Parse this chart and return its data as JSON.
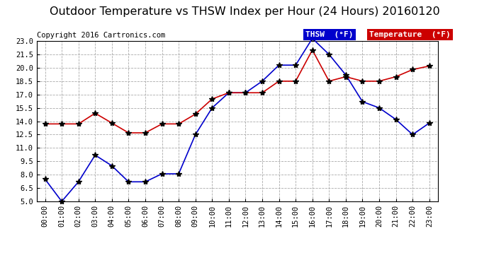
{
  "title": "Outdoor Temperature vs THSW Index per Hour (24 Hours) 20160120",
  "copyright": "Copyright 2016 Cartronics.com",
  "legend_thsw": "THSW  (°F)",
  "legend_temp": "Temperature  (°F)",
  "hours": [
    "00:00",
    "01:00",
    "02:00",
    "03:00",
    "04:00",
    "05:00",
    "06:00",
    "07:00",
    "08:00",
    "09:00",
    "10:00",
    "11:00",
    "12:00",
    "13:00",
    "14:00",
    "15:00",
    "16:00",
    "17:00",
    "18:00",
    "19:00",
    "20:00",
    "21:00",
    "22:00",
    "23:00"
  ],
  "thsw": [
    7.5,
    5.0,
    7.2,
    10.2,
    9.0,
    7.2,
    7.2,
    8.1,
    8.1,
    12.5,
    15.5,
    17.2,
    17.2,
    18.5,
    20.3,
    20.3,
    23.3,
    21.5,
    19.2,
    16.2,
    15.5,
    14.2,
    12.5,
    13.8
  ],
  "temperature": [
    13.7,
    13.7,
    13.7,
    14.9,
    13.8,
    12.7,
    12.7,
    13.7,
    13.7,
    14.8,
    16.5,
    17.2,
    17.2,
    17.2,
    18.5,
    18.5,
    22.0,
    18.5,
    19.0,
    18.5,
    18.5,
    19.0,
    19.8,
    20.2
  ],
  "ylim": [
    5.0,
    23.0
  ],
  "yticks": [
    5.0,
    6.5,
    8.0,
    9.5,
    11.0,
    12.5,
    14.0,
    15.5,
    17.0,
    18.5,
    20.0,
    21.5,
    23.0
  ],
  "thsw_color": "#0000cc",
  "temp_color": "#cc0000",
  "background_color": "#ffffff",
  "grid_color": "#aaaaaa",
  "title_fontsize": 11.5,
  "copyright_fontsize": 7.5,
  "legend_fontsize": 8.0,
  "axis_fontsize": 7.5
}
